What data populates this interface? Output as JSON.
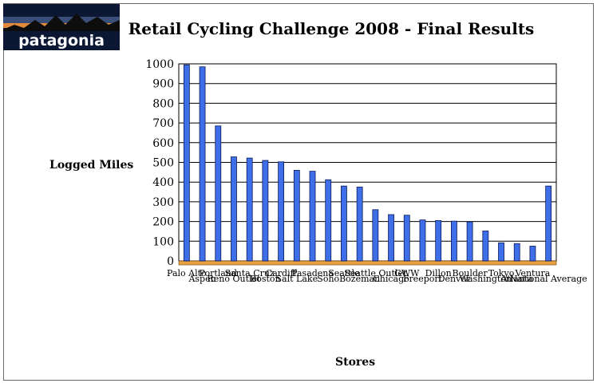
{
  "logo": {
    "text": "patagonia"
  },
  "colors": {
    "bar": "#3f6fe8",
    "bar_edge": "#0a1a5a",
    "floor": "#e8a040",
    "grid": "#000000",
    "plot_bg": "#ffffff",
    "logo_bg": "#0b1733"
  },
  "chart_data": {
    "type": "bar",
    "title": "Retail Cycling Challenge 2008 - Final Results",
    "xlabel": "Stores",
    "ylabel": "Logged Miles",
    "ylim": [
      0,
      1000
    ],
    "yticks": [
      0,
      100,
      200,
      300,
      400,
      500,
      600,
      700,
      800,
      900,
      1000
    ],
    "grid": true,
    "legend": "none",
    "categories": [
      "Palo Alto",
      "Aspen",
      "Portland",
      "Reno Outlet",
      "Santa Cruz",
      "Boston",
      "Cardiff",
      "Salt Lake",
      "Pasadena",
      "Soho",
      "Seattle",
      "Bozeman",
      "Seattle Outlet",
      "Chicago",
      "GWW",
      "Freeport",
      "Dillon",
      "Denver",
      "Boulder",
      "Washington",
      "Tokyo",
      "Atlanta",
      "Ventura",
      "National Average"
    ],
    "values": [
      995,
      985,
      685,
      528,
      522,
      510,
      503,
      460,
      455,
      412,
      380,
      375,
      260,
      235,
      232,
      208,
      205,
      202,
      198,
      152,
      92,
      88,
      75,
      380
    ]
  }
}
